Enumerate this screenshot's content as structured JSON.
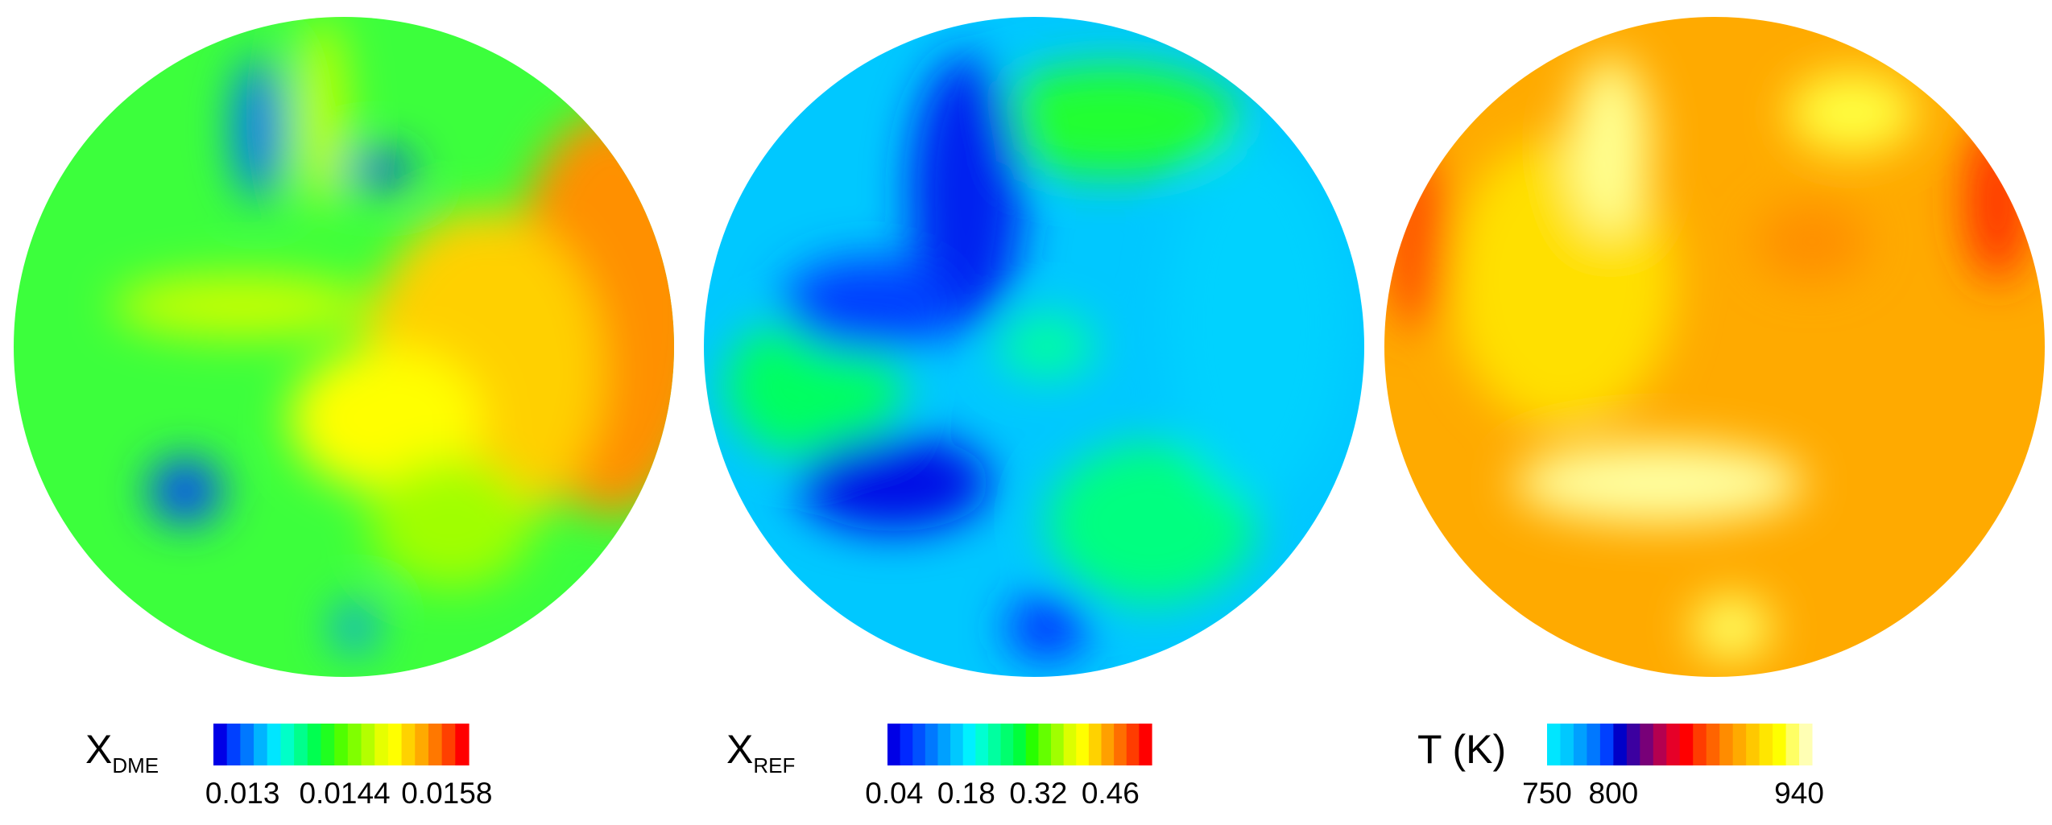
{
  "chart_data": [
    {
      "type": "contour",
      "label": "X",
      "subscript": "DME",
      "clim": [
        0.0126,
        0.0161
      ],
      "ticks": [
        0.013,
        0.0144,
        0.0158
      ],
      "colors": [
        "#0000e6",
        "#0040ff",
        "#0078ff",
        "#00b4ff",
        "#00e6ff",
        "#00ffc8",
        "#00ff8c",
        "#00ff50",
        "#20ff20",
        "#50ff00",
        "#80ff00",
        "#b4ff00",
        "#e6ff00",
        "#ffff00",
        "#ffd200",
        "#ffaa00",
        "#ff7800",
        "#ff4000",
        "#ff0000"
      ]
    },
    {
      "type": "contour",
      "label": "X",
      "subscript": "REF",
      "clim": [
        0.027,
        0.54
      ],
      "ticks": [
        0.04,
        0.18,
        0.32,
        0.46
      ],
      "colors": [
        "#0000e6",
        "#0028ff",
        "#0050ff",
        "#0078ff",
        "#00a0ff",
        "#00c8ff",
        "#00f0ff",
        "#00ffd2",
        "#00ffa0",
        "#00ff6e",
        "#00ff3c",
        "#28ff00",
        "#64ff00",
        "#a0ff00",
        "#dcff00",
        "#ffff00",
        "#ffd200",
        "#ffa000",
        "#ff6e00",
        "#ff3c00",
        "#ff0000"
      ]
    },
    {
      "type": "contour",
      "label": "T (K)",
      "clim": [
        750,
        960
      ],
      "ticks": [
        750,
        800,
        940
      ],
      "colors": [
        "#00e6ff",
        "#00c8ff",
        "#00a0ff",
        "#0078ff",
        "#0040ff",
        "#0000c8",
        "#3c00a0",
        "#780078",
        "#b40050",
        "#e60028",
        "#ff0000",
        "#ff3c00",
        "#ff6400",
        "#ff8c00",
        "#ffaa00",
        "#ffc800",
        "#ffe600",
        "#ffff00",
        "#ffff64",
        "#ffffb4",
        "#ffffff"
      ]
    }
  ]
}
